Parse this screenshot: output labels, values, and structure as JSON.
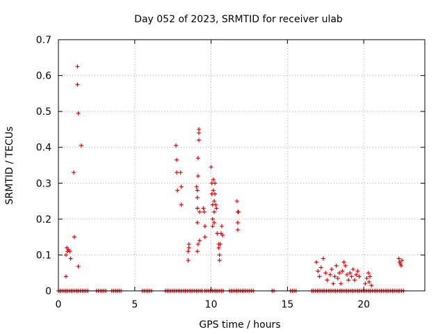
{
  "chart_data": {
    "type": "scatter",
    "title": "Day 052 of 2023, SRMTID for receiver ulab",
    "xlabel": "GPS time / hours",
    "ylabel": "SRMTID / TECUs",
    "xlim": [
      0,
      24
    ],
    "ylim": [
      0,
      0.7
    ],
    "xticks": [
      0,
      5,
      10,
      15,
      20
    ],
    "yticks": [
      0,
      0.1,
      0.2,
      0.3,
      0.4,
      0.5,
      0.6,
      0.7
    ],
    "ytick_labels": [
      "0",
      "0.1",
      "0.2",
      "0.3",
      "0.4",
      "0.5",
      "0.6",
      "0.7"
    ],
    "grid": true,
    "marker": "+",
    "series": [
      {
        "name": "SRMTID",
        "color": "#e00000",
        "points": [
          [
            0.5,
            0.04
          ],
          [
            0.5,
            0.1
          ],
          [
            0.55,
            0.12
          ],
          [
            0.6,
            0.11
          ],
          [
            0.65,
            0.115
          ],
          [
            0.75,
            0.11
          ],
          [
            0.8,
            0.09
          ],
          [
            1.0,
            0.33
          ],
          [
            1.05,
            0.15
          ],
          [
            1.25,
            0.625
          ],
          [
            1.25,
            0.575
          ],
          [
            1.3,
            0.495
          ],
          [
            1.3,
            0.068
          ],
          [
            1.5,
            0.405
          ],
          [
            7.7,
            0.405
          ],
          [
            7.75,
            0.365
          ],
          [
            7.75,
            0.33
          ],
          [
            7.8,
            0.28
          ],
          [
            8.0,
            0.33
          ],
          [
            8.05,
            0.29
          ],
          [
            8.05,
            0.24
          ],
          [
            8.5,
            0.085
          ],
          [
            8.5,
            0.11
          ],
          [
            8.55,
            0.12
          ],
          [
            8.55,
            0.13
          ],
          [
            9.05,
            0.29
          ],
          [
            9.1,
            0.28
          ],
          [
            9.1,
            0.26
          ],
          [
            9.1,
            0.23
          ],
          [
            9.1,
            0.19
          ],
          [
            9.1,
            0.11
          ],
          [
            9.15,
            0.37
          ],
          [
            9.15,
            0.32
          ],
          [
            9.15,
            0.13
          ],
          [
            9.2,
            0.45
          ],
          [
            9.2,
            0.44
          ],
          [
            9.2,
            0.42
          ],
          [
            9.25,
            0.22
          ],
          [
            9.25,
            0.14
          ],
          [
            9.5,
            0.23
          ],
          [
            9.55,
            0.22
          ],
          [
            9.6,
            0.15
          ],
          [
            9.6,
            0.18
          ],
          [
            10.0,
            0.345
          ],
          [
            10.05,
            0.3
          ],
          [
            10.05,
            0.27
          ],
          [
            10.1,
            0.24
          ],
          [
            10.1,
            0.2
          ],
          [
            10.1,
            0.18
          ],
          [
            10.15,
            0.31
          ],
          [
            10.15,
            0.28
          ],
          [
            10.2,
            0.25
          ],
          [
            10.2,
            0.22
          ],
          [
            10.2,
            0.19
          ],
          [
            10.25,
            0.3
          ],
          [
            10.25,
            0.27
          ],
          [
            10.3,
            0.24
          ],
          [
            10.35,
            0.23
          ],
          [
            10.4,
            0.16
          ],
          [
            10.5,
            0.13
          ],
          [
            10.5,
            0.12
          ],
          [
            10.55,
            0.1
          ],
          [
            10.55,
            0.085
          ],
          [
            10.6,
            0.13
          ],
          [
            10.65,
            0.16
          ],
          [
            10.7,
            0.18
          ],
          [
            10.75,
            0.155
          ],
          [
            11.7,
            0.25
          ],
          [
            11.75,
            0.22
          ],
          [
            11.75,
            0.19
          ],
          [
            11.75,
            0.17
          ],
          [
            11.8,
            0.22
          ],
          [
            16.9,
            0.08
          ],
          [
            17.0,
            0.055
          ],
          [
            17.1,
            0.04
          ],
          [
            17.2,
            0.065
          ],
          [
            17.35,
            0.09
          ],
          [
            17.5,
            0.05
          ],
          [
            17.6,
            0.03
          ],
          [
            17.8,
            0.045
          ],
          [
            17.9,
            0.06
          ],
          [
            18.0,
            0.02
          ],
          [
            18.1,
            0.04
          ],
          [
            18.2,
            0.07
          ],
          [
            18.3,
            0.035
          ],
          [
            18.4,
            0.05
          ],
          [
            18.5,
            0.02
          ],
          [
            18.6,
            0.055
          ],
          [
            18.7,
            0.08
          ],
          [
            18.8,
            0.07
          ],
          [
            18.9,
            0.045
          ],
          [
            19.0,
            0.03
          ],
          [
            19.1,
            0.05
          ],
          [
            19.2,
            0.04
          ],
          [
            19.3,
            0.06
          ],
          [
            19.4,
            0.03
          ],
          [
            19.5,
            0.045
          ],
          [
            19.6,
            0.055
          ],
          [
            19.7,
            0.04
          ],
          [
            20.1,
            0.02
          ],
          [
            20.2,
            0.035
          ],
          [
            20.3,
            0.05
          ],
          [
            20.35,
            0.025
          ],
          [
            20.4,
            0.04
          ],
          [
            20.5,
            0.015
          ],
          [
            22.3,
            0.09
          ],
          [
            22.35,
            0.08
          ],
          [
            22.4,
            0.075
          ],
          [
            22.45,
            0.07
          ],
          [
            22.5,
            0.085
          ]
        ],
        "zero_ranges": [
          [
            0.0,
            2.0
          ],
          [
            2.5,
            3.1
          ],
          [
            3.5,
            4.2
          ],
          [
            5.5,
            6.2
          ],
          [
            7.0,
            9.4
          ],
          [
            9.6,
            10.8
          ],
          [
            11.2,
            12.8
          ],
          [
            14.0,
            14.2
          ],
          [
            15.2,
            15.6
          ],
          [
            16.6,
            22.6
          ]
        ]
      }
    ]
  }
}
